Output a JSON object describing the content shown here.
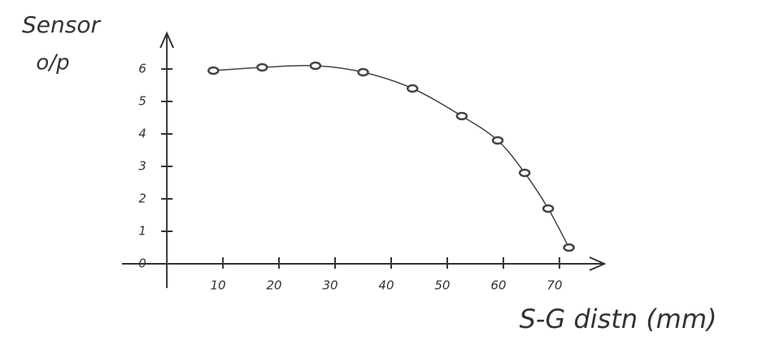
{
  "chart_data": {
    "type": "scatter",
    "y_label_lines": [
      "Sensor",
      "o/p"
    ],
    "x_label": "S-G distn (mm)",
    "x": [
      8.3,
      17,
      26.5,
      35,
      43.8,
      52.6,
      59,
      63.8,
      68,
      71.7
    ],
    "series": [
      {
        "color": "#444444",
        "values": [
          5.95,
          6.05,
          6.1,
          5.9,
          5.4,
          4.55,
          3.8,
          2.8,
          1.7,
          0.5
        ]
      }
    ],
    "line": true,
    "xlim": [
      -8,
      78
    ],
    "ylim": [
      -0.75,
      7.1
    ],
    "xticks": [
      10,
      20,
      30,
      40,
      50,
      60,
      70
    ],
    "yticks": [
      0,
      1,
      2,
      3,
      4,
      5,
      6
    ]
  }
}
